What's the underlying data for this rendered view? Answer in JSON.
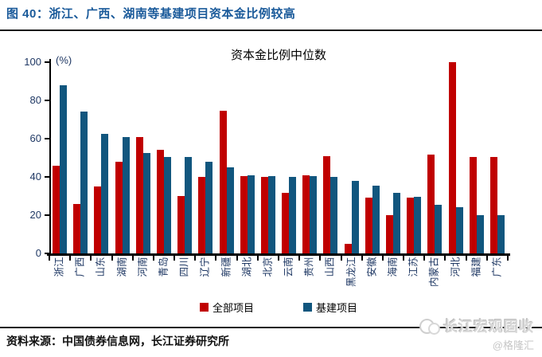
{
  "figure": {
    "title": "图 40：浙江、广西、湖南等基建项目资本金比例较高",
    "source": "资料来源：中国债券信息网，长江证券研究所",
    "watermark": {
      "brand": "长江宏观固收",
      "handle": "@格隆汇",
      "logo": "two-circles-icon"
    }
  },
  "chart_data": {
    "type": "bar",
    "title": "资本金比例中位数",
    "unit_label": "(%)",
    "xlabel": "",
    "ylabel": "(%)",
    "ylim": [
      0,
      100
    ],
    "yticks": [
      0,
      20,
      40,
      60,
      80,
      100
    ],
    "grid": false,
    "legend_position": "bottom",
    "categories": [
      "浙江",
      "广西",
      "山东",
      "湖南",
      "河南",
      "青岛",
      "四川",
      "辽宁",
      "新疆",
      "湖北",
      "北京",
      "云南",
      "贵州",
      "山西",
      "黑龙江",
      "安徽",
      "海南",
      "江苏",
      "内蒙古",
      "河北",
      "福建",
      "广东"
    ],
    "series": [
      {
        "name": "全部项目",
        "color": "#C00000",
        "values": [
          46,
          26,
          35,
          48,
          61,
          54,
          30,
          40,
          74.5,
          40.5,
          40,
          31.5,
          41,
          51,
          5,
          29,
          20,
          29,
          51.5,
          100,
          50.5,
          50.5
        ]
      },
      {
        "name": "基建项目",
        "color": "#11567E",
        "values": [
          88,
          74,
          62.5,
          61,
          52.5,
          50.5,
          50.5,
          48,
          45,
          41,
          40.5,
          40,
          40.5,
          40,
          38,
          35.5,
          31.5,
          29.5,
          25.5,
          24,
          20,
          20
        ]
      }
    ]
  },
  "colors": {
    "title_blue": "#1a5a9a",
    "axis_label_navy": "#1f3864",
    "bar_red": "#C00000",
    "bar_blue": "#11567E"
  }
}
